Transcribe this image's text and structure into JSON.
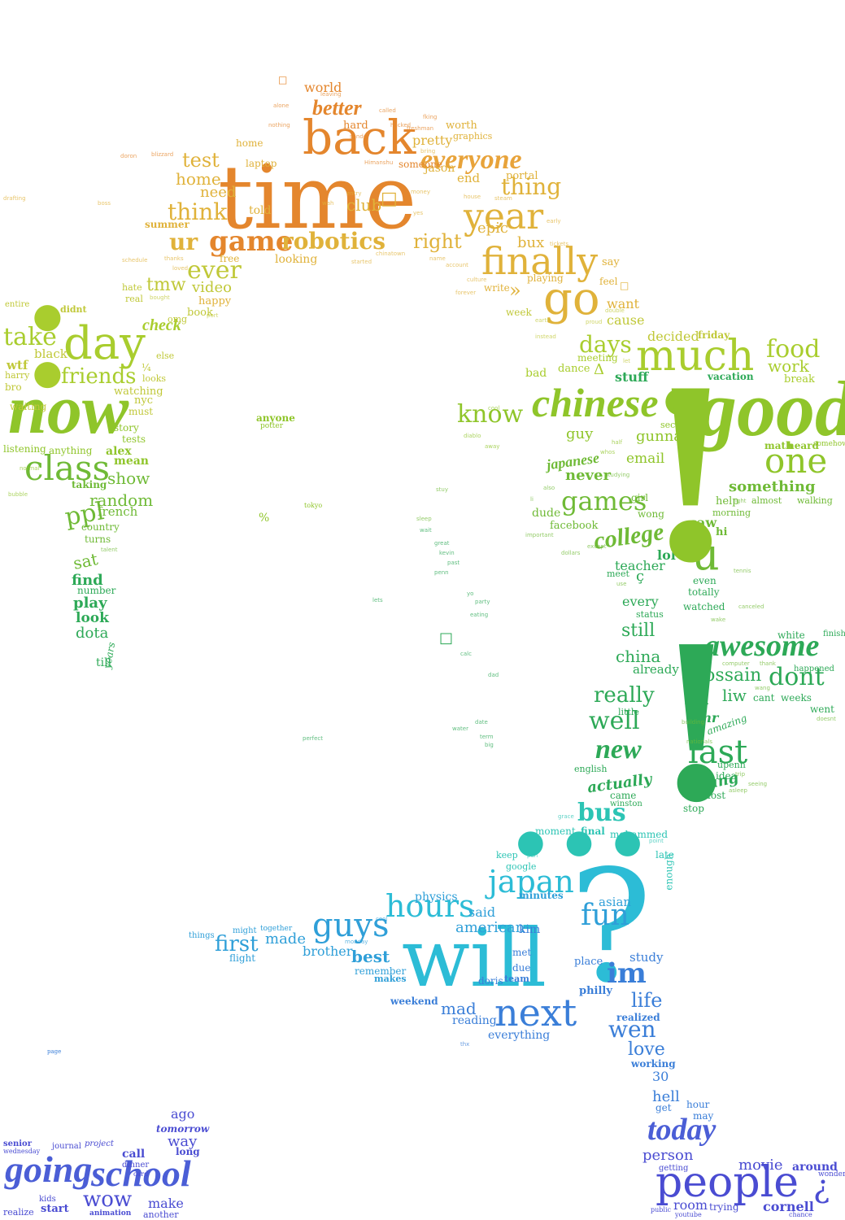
{
  "words": {
    "time": "time",
    "back": "back",
    "everyone": "everyone",
    "year": "year",
    "finally": "finally",
    "game": "game",
    "robotics": "robotics",
    "better": "better",
    "thing": "thing",
    "test": "test",
    "home": "home",
    "think": "think",
    "right": "right",
    "ur": "ur",
    "ever": "ever",
    "video": "video",
    "go": "go",
    "tmw": "tmw",
    "much": "much",
    "day": "day",
    "take": "take",
    "friends": "friends",
    "now": "now",
    "class": "class",
    "good": "good",
    "one": "one",
    "something": "something",
    "chinese": "chinese",
    "know": "know",
    "days": "days",
    "food": "food",
    "work": "work",
    "games": "games",
    "college": "college",
    "u": "u",
    "japanese": "japanese",
    "never": "never",
    "ppl": "ppl",
    "show": "show",
    "random": "random",
    "find": "find",
    "play": "play",
    "look": "look",
    "dota": "dota",
    "awesome": "awesome",
    "hossain": "hossain",
    "dont": "dont",
    "china": "china",
    "really": "really",
    "well": "well",
    "new": "new",
    "last": "last",
    "bus": "bus",
    "actually": "actually",
    "still": "still",
    "will": "will",
    "japan": "japan",
    "hours": "hours",
    "guys": "guys",
    "first": "first",
    "fun": "fun",
    "im": "im",
    "next": "next",
    "life": "life",
    "wen": "wen",
    "love": "love",
    "today": "today",
    "people": "people",
    "going": "going",
    "school": "school",
    "wow": "wow",
    "person": "person",
    "movie": "movie",
    "room": "room",
    "cornell": "cornell",
    "around": "around",
    "hell": "hell",
    "tomorrow": "tomorrow",
    "best": "best",
    "made": "made",
    "weekend": "weekend",
    "mad": "mad",
    "everything": "everything",
    "minutes": "minutes",
    "american": "american",
    "need": "need",
    "check": "check",
    "stuff": "stuff",
    "wait": "wait",
    "saw": "saw",
    "lol": "lol",
    "teacher": "teacher",
    "every": "every",
    "wrf": "wtf",
    "sat": "sat",
    "mean": "mean",
    "alex": "alex",
    "anyone": "anyone",
    "french": "french",
    "sleep": "sleep",
    "girl": "girl",
    "help": "help",
    "decided": "decided",
    "friday": "friday",
    "want": "want",
    "cause": "cause",
    "bux": "bux",
    "epic": "epic",
    "playing": "playing",
    "looking": "looking",
    "club": "club",
    "told": "told",
    "pretty": "pretty",
    "worth": "worth",
    "end": "end",
    "jason": "jason",
    "portal": "portal",
    "world": "world",
    "hard": "hard",
    "laptop": "laptop",
    "summer": "summer",
    "free": "free",
    "happy": "happy",
    "book": "book",
    "black": "black",
    "waiting": "waiting",
    "watching": "watching",
    "must": "must",
    "listening": "listening",
    "anything": "anything",
    "taking": "taking",
    "country": "country",
    "number": "number",
    "years": "years",
    "till": "till",
    "email": "email",
    "guy": "guy",
    "gunna": "gunna",
    "dude": "dude",
    "facebook": "facebook",
    "studying": "studying",
    "already": "already",
    "totally": "totally",
    "even": "even",
    "watched": "watched",
    "little": "little",
    "english": "english",
    "came": "came",
    "stop": "stop",
    "idea": "idea",
    "fukang": "fukang",
    "wong": "wong",
    "morning": "morning",
    "almost": "almost",
    "walking": "walking",
    "physics": "physics",
    "said": "said",
    "asian": "asian",
    "study": "study",
    "realized": "realized",
    "working": "working",
    "brother": "brother",
    "flight": "flight",
    "together": "together",
    "remember": "remember",
    "makes": "makes",
    "reading": "reading",
    "doris": "doris",
    "team": "team",
    "place": "place",
    "kim": "kim",
    "met": "met",
    "due": "due",
    "philly": "philly",
    "way": "way",
    "ago": "ago",
    "call": "call",
    "long": "long",
    "make": "make",
    "start": "start",
    "kids": "kids",
    "another": "another",
    "animation": "animation",
    "journal": "journal",
    "project": "project",
    "senior": "senior",
    "wednesday": "wednesday",
    "realize": "realize",
    "wonder": "wonder",
    "getting": "getting",
    "trying": "trying",
    "chance": "chance",
    "may": "may",
    "hour": "hour",
    "get": "get",
    "point": "point",
    "late": "late",
    "enough": "enough",
    "moment": "moment",
    "keep": "keep",
    "google": "google",
    "final": "final",
    "mohammed": "mohammed",
    "winston": "winston",
    "penn": "penn",
    "eating": "eating",
    "party": "party",
    "kevin": "kevin",
    "great": "great",
    "past": "past",
    "vacation": "vacation",
    "break": "break",
    "second": "second",
    "heard": "heard",
    "somehow": "somehow",
    "math": "math",
    "meeting": "meeting",
    "dance": "dance",
    "bad": "bad",
    "cool": "cool",
    "diablo": "diablo",
    "away": "away",
    "half": "half",
    "whos": "whos",
    "meet": "meet",
    "use": "use",
    "status": "status",
    "except": "except",
    "computer": "computer",
    "happened": "happened",
    "weeks": "weeks",
    "cant": "cant",
    "went": "went",
    "doesnt": "doesnt",
    "white": "white",
    "finish": "finish",
    "canceled": "canceled",
    "wake": "wake",
    "upenn": "upenn",
    "trip": "trip",
    "seeing": "seeing",
    "asleep": "asleep",
    "lost": "lost",
    "nationals": "nationals",
    "building": "building",
    "amazing": "amazing",
    "mr": "mr",
    "liw": "liw",
    "wang": "wang",
    "thank": "thank",
    "tennis": "tennis",
    "light": "light",
    "nyc": "nyc",
    "bro": "bro",
    "harry": "harry",
    "looks": "looks",
    "else": "else",
    "omg": "omg",
    "port": "port",
    "real": "real",
    "hate": "hate",
    "bought": "bought",
    "entire": "entire",
    "didnt": "didnt",
    "bubble": "bubble",
    "normal": "normal",
    "turns": "turns",
    "talent": "talent",
    "story": "story",
    "tests": "tests",
    "potter": "potter",
    "tokyo": "tokyo",
    "stuy": "stuy",
    "sleep2": "sleep",
    "li": "li",
    "also": "also",
    "let": "let",
    "feel": "feel",
    "say": "say",
    "write": "write",
    "forever": "forever",
    "early": "early",
    "tickets": "tickets",
    "culture": "culture",
    "name": "name",
    "account": "account",
    "chinatown": "chinatown",
    "started": "started",
    "dtd": "dtd",
    "proud": "proud",
    "double": "double",
    "week": "week",
    "earth": "earth",
    "instead": "instead",
    "hero": "hero",
    "someone": "someone",
    "graphics": "graphics",
    "bring": "bring",
    "freshman": "freshman",
    "called": "called",
    "hacked": "hacked",
    "leaving": "leaving",
    "nothing": "nothing",
    "alone": "alone",
    "blizzard": "blizzard",
    "doron": "doron",
    "boss": "boss",
    "drafting": "drafting",
    "thanks": "thanks",
    "schedule": "schedule",
    "loved": "loved",
    "wah": "wah",
    "entry": "entry",
    "yes": "yes",
    "money": "money",
    "house": "house",
    "steam": "steam",
    "today2": "today",
    "sander": "sander",
    "himanshu": "Himanshu",
    "fking": "fking",
    "cheap": "cheap",
    "yo": "yo",
    "calc": "calc",
    "dad": "dad",
    "date": "date",
    "term": "term",
    "water": "water",
    "big": "big",
    "perfect": "perfect",
    "thx": "thx",
    "grace": "grace",
    "ny": "ny",
    "pan": "pan",
    "cool2": "cool",
    "page": "page",
    "monday": "monday",
    "page2": "page",
    "30": "30",
    "public": "public",
    "youtube": "youtube",
    "card": "card",
    "dinner": "dinner",
    "things": "things",
    "might": "might",
    "lets": "lets",
    "important": "important",
    "dollars": "dollars",
    "hi": "hi",
    "wow2": "wow"
  },
  "glyphs": {
    "exclam": "!",
    "question": "?",
    "colon_dot": "●",
    "bang2": "!",
    "invq": "¿",
    "zhe": "Ж",
    "cedil": "ç",
    "square": "□",
    "guill": "»",
    "percent": "%",
    "triangle": "Δ",
    "onequarter": "¼"
  },
  "palette": {
    "orange": "#e4862d",
    "gold": "#e0b23a",
    "lime": "#a9cd2e",
    "green": "#3fb04a",
    "cyan": "#2cbcd6",
    "blue": "#3a7ed8",
    "violet": "#4a4cd2"
  }
}
